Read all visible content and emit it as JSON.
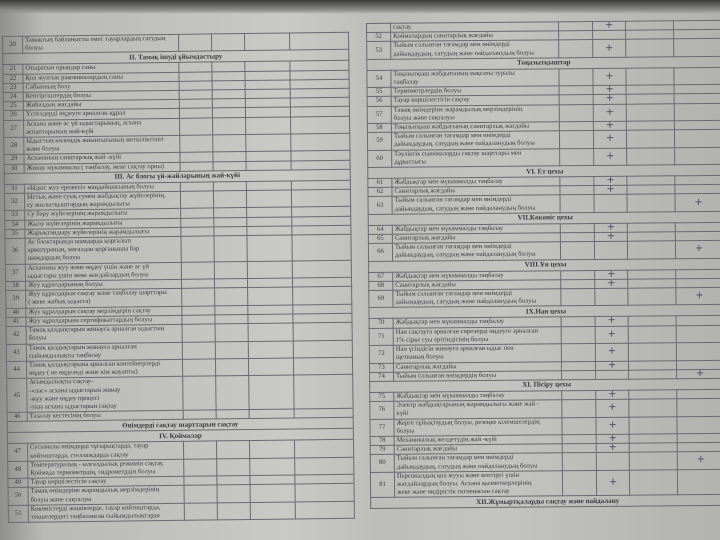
{
  "left_page": {
    "rows": [
      {
        "n": "20",
        "text": "Тамақтың байланысты емес тауарлардың сатудың\nболуы"
      },
      {
        "heading": "II. Тамақ ішуді ұйымдастыру"
      },
      {
        "n": "21",
        "text": "Отыратын орындар саны"
      },
      {
        "n": "22",
        "text": "Қол жуатын раковиналардың саны"
      },
      {
        "n": "23",
        "text": "Сабынның болу"
      },
      {
        "n": "24",
        "text": "Кептіргіштердің болуы"
      },
      {
        "n": "25",
        "text": "Жиһаздың жағдайы"
      },
      {
        "n": "26",
        "text": "Үстелдерді өңдеуге арналған құрал"
      },
      {
        "n": "27",
        "text": "Асхана және ас үй ыдыстарының, асхана\nаспаптарының жай-күйі"
      },
      {
        "n": "28",
        "text": "Ыдыстың көлемдік жиынтығының жеткіліктілігі\nжәне болуы"
      },
      {
        "n": "29",
        "text": "Асхананың санитарлық жай -күйі"
      },
      {
        "n": "30",
        "text": "Жинау мүкаммалы ( таңбалау, жеке сақтау орны)"
      },
      {
        "heading": "III. Ас блогы үй-жайларының жай-күйі"
      },
      {
        "n": "31",
        "text": "«Ыдыс жуу ережесі» маңдайшасының болуы"
      },
      {
        "n": "32",
        "text": "Ыстық және суық сумен жабдықтау жүйелерінің,\nсу жылытқыштардың жарамдылығы"
      },
      {
        "n": "33",
        "text": "Су бару жүйелерінің жарамдылығы"
      },
      {
        "n": "34",
        "text": "Жылу жүйелерінің жарамдылығы"
      },
      {
        "n": "35",
        "text": "Жарықтандыру жүйелерінің жарамдылығы"
      },
      {
        "n": "36",
        "text": "Ас блоктарында шамдарда қорғалып\nарматураның, мағалдан қорғанышы бар\nшамдардың болуы"
      },
      {
        "n": "37",
        "text": "Асхананы жуу және өңдеу үшін және ас үй\nыдыстары үшін жеке жағдайлардың болуы"
      },
      {
        "n": "38",
        "text": "Жуу құралдарының болуы"
      },
      {
        "n": "39",
        "text": "Жуу құралдарын сақтау және таңбалау шарттары\n( жеке жабық ыдыста)"
      },
      {
        "n": "40",
        "text": "Жуу құралдарын сақтау мерзімдерін сақтау"
      },
      {
        "n": "41",
        "text": "Жуу құралдарына сертификаттардың болуы"
      },
      {
        "n": "42",
        "text": "Тамақ қалдықтарын жинауға арналған ыдыстың\nболуы"
      },
      {
        "n": "43",
        "text": "Тамақ қалдықтарын жинауға арналған\nсыйымдылықты таңбалау"
      },
      {
        "n": "44",
        "text": "Тамақ қалдықтарына арналған контейнерлерді\nөңдеу ( не өңделеді және кім жауапты)"
      },
      {
        "n": "45",
        "text": "Ағымдылықты сақтау-\n-«лас» асхана ыдыстарын жинау\n-жуу және өңдеу процесі\n-таза асхана ыдыстарын сақтау"
      },
      {
        "n": "46",
        "text": "Тазалау кестесінің болуы"
      },
      {
        "heading": "Өнімдерді сақтау шарттарын сақтау"
      },
      {
        "heading": "IV. Қоймалар"
      },
      {
        "n": "47",
        "text": "Сусымалы өнімдерді тұғырықтарда, тауар\nкөйтиштарда, стеллаждарда сақтау"
      },
      {
        "n": "48",
        "text": "Температуралық - ылғалдылық режимін сақтау.\nҚоймада термометрдің, гидрометрдің болуы"
      },
      {
        "n": "49",
        "text": "Тауар көршілестігін сақтау"
      },
      {
        "n": "50",
        "text": "Тамақ өнімдеріне жарамдылық мерзімдерінің\nболуы және сақталуы"
      },
      {
        "n": "51",
        "text": "Көкөністерді жәшіктерде, тауар көйтиштарда,\nтекшелердегі таңбаланған сыйымдылықтарда"
      }
    ]
  },
  "right_page": {
    "rows": [
      {
        "n": "",
        "text": "сақтау.",
        "c2": "+"
      },
      {
        "n": "52",
        "text": "Қоймалардың санитарлық жағдайы"
      },
      {
        "n": "53",
        "text": "Тыйым салынған тағамдар мен өнімдерді\nдайындаудың, сатудың және пайдаланудың болуы",
        "c2": "+"
      },
      {
        "heading": "Тоңазытқыштар"
      },
      {
        "n": "54",
        "text": "Тоңазытқыш жабдығының мақсаты туралы\nтаңбалау",
        "c2": "+"
      },
      {
        "n": "55",
        "text": "Термометрлердің болуы",
        "c2": "+"
      },
      {
        "n": "56",
        "text": "Тауар көршілестігін сақтау",
        "c2": "+"
      },
      {
        "n": "57",
        "text": "Тамақ өнімдеріне жарамдылық мерзімдерінің\nболуы және сақталуы",
        "c2": "+"
      },
      {
        "n": "58",
        "text": "Тоңазытқыш жабдығының санитарлық жағдайы",
        "c2": "+"
      },
      {
        "n": "59",
        "text": "Тыйым салынған тағамдар мен өнімдерді\nдайындаудың, сатудың және пайдаланудың болуы",
        "c2": "+"
      },
      {
        "n": "60",
        "text": "Тәуліктік сынамаларды сақтау шарттары мен\nдұрыстығы",
        "c2": "+"
      },
      {
        "heading": "VI. Ет цехы"
      },
      {
        "n": "61",
        "text": "Жабдықтар мен мүкаммалды таңбалау",
        "c2": "+"
      },
      {
        "n": "62",
        "text": "Санитарлық жағдайы",
        "c2": "+"
      },
      {
        "n": "63",
        "text": "Тыйым салынған тағамдар мен өнімдерді\nдайындаудың, сатудың және пайдаланудың болуы",
        "c4": "+"
      },
      {
        "heading": "VII.Көкөніс цехы"
      },
      {
        "n": "64",
        "text": "Жабдықтар мен мүкаммалды таңбалау",
        "c2": "+"
      },
      {
        "n": "65",
        "text": "Санитарлық жағдайы",
        "c2": "+"
      },
      {
        "n": "66",
        "text": "Тыйым салынған тағамдар мен өнімдерді\nдайындаудың, сатудың және пайдаланудың болуы",
        "c4": "+"
      },
      {
        "heading": "VIII.Ұн цехы"
      },
      {
        "n": "67",
        "text": "Жабдықтар мен мүкаммалды таңбалау",
        "c2": "+"
      },
      {
        "n": "68",
        "text": "Санитарлық жағдайы",
        "c2": "+"
      },
      {
        "n": "69",
        "text": "Тыйым салынған тағамдар мен өнімдерді\nдайындаудың, сатудың және пайдаланудың болуы",
        "c4": "+"
      },
      {
        "heading": "IX.Нан цехы"
      },
      {
        "n": "70",
        "text": "Жабдықтар мен мүкаммалды таңбалау",
        "c2": "+"
      },
      {
        "n": "71",
        "text": "Нан сақтауға арналған сөрелерді өңдеуге арналған\n1% сірке суы ерітіндісінің болуы",
        "c2": "+"
      },
      {
        "n": "72",
        "text": "Нан үгіндісін жинауға арналған ыдыс пен\nщетканың болуы",
        "c2": "+"
      },
      {
        "n": "73",
        "text": "Санитарлық жағдайы",
        "c2": "+"
      },
      {
        "n": "74",
        "text": "Тыйым салынған өнімдердің болуы",
        "c4": "+"
      },
      {
        "heading": "XI. Пісіру цехы"
      },
      {
        "n": "75",
        "text": "Жабдықтар мен мүкаммалды таңбалау",
        "c2": "+"
      },
      {
        "n": "76",
        "text": "Электр жабдықтарының жарамдылығы және жай -\nкүйі",
        "c2": "+"
      },
      {
        "n": "77",
        "text": "Жерге тұйықтаудың болуы, резеңке кілемшелердің\nболуы",
        "c2": "+"
      },
      {
        "n": "78",
        "text": "Механикалық желдетудің жай -күйі",
        "c2": "+"
      },
      {
        "n": "79",
        "text": "Санитарлық жағдайы",
        "c2": "+"
      },
      {
        "n": "80",
        "text": "Тыйым салынған тағамдар мен өнімдерді\nдайындаудың, сатудың және пайдаланудың болуы",
        "c4": "+"
      },
      {
        "n": "81",
        "text": "Персоналдың қол жууы және кептіруі үшін\nжағдайлардың болуы. Асхана қызметкерлерінің\nжеке және өндірістік гигиенасын сақтау",
        "c2": "+"
      },
      {
        "heading": "XII.Жұмыртқаларды сақтау және пайдалану"
      }
    ]
  },
  "colors": {
    "ink": "#3a3a40",
    "pen": "#4a4a66"
  },
  "icons": {
    "mark": "plus-sign"
  }
}
